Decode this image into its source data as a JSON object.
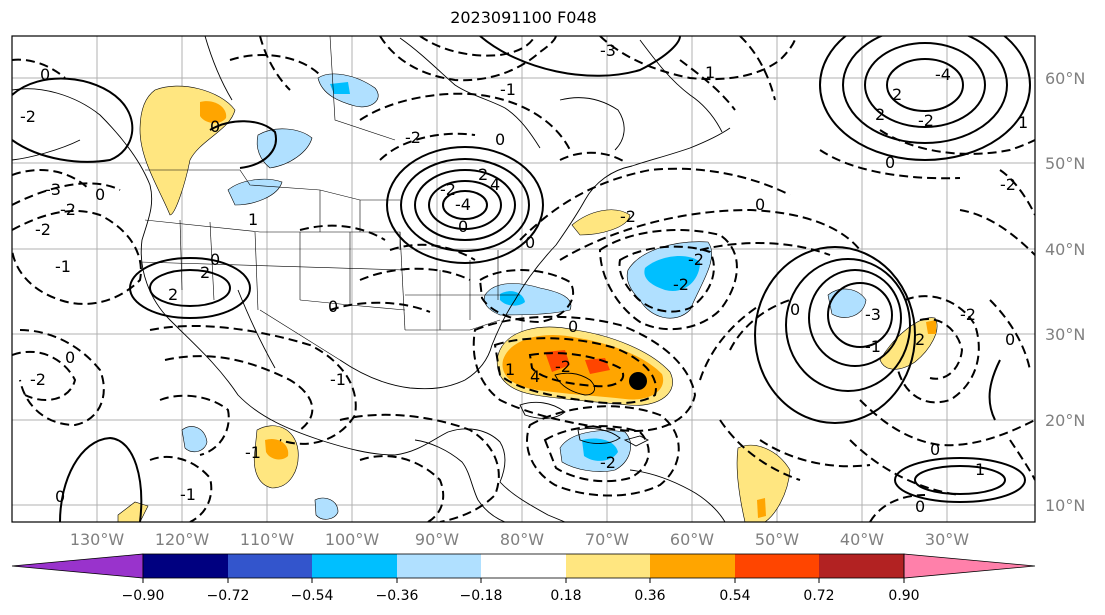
{
  "title": "2023091100 F048",
  "latitude_labels": [
    "60°N",
    "50°N",
    "40°N",
    "30°N",
    "20°N",
    "10°N"
  ],
  "longitude_labels": [
    "130°W",
    "120°W",
    "110°W",
    "100°W",
    "90°W",
    "80°W",
    "70°W",
    "60°W",
    "50°W",
    "40°W",
    "30°W"
  ],
  "colorbar": {
    "ticks": [
      "−0.90",
      "−0.72",
      "−0.54",
      "−0.36",
      "−0.18",
      "0.18",
      "0.36",
      "0.54",
      "0.72",
      "0.90"
    ],
    "colors": [
      "#9933cc",
      "#000080",
      "#3355cc",
      "#00bfff",
      "#b0e0ff",
      "#ffffff",
      "#ffe680",
      "#ffa500",
      "#ff4500",
      "#b22222",
      "#ff80aa"
    ]
  },
  "contour_labels": [
    "0",
    "-2",
    "0",
    "-2",
    "-1",
    "-3",
    "-2",
    "0",
    "2",
    "0",
    "2",
    "1",
    "0",
    "-2",
    "-1",
    "0",
    "-1",
    "-1",
    "0",
    "-4",
    "2",
    "-2",
    "4",
    "0",
    "0",
    "-2",
    "0",
    "-1",
    "0",
    "-2",
    "1",
    "4",
    "-3",
    "-2",
    "-2",
    "0",
    "-2",
    "0",
    "1",
    "-2",
    "-2",
    "0",
    "2",
    "-4",
    "-2",
    "2",
    "0",
    "1",
    "0",
    "-2",
    "0",
    "-1",
    "-3",
    "1",
    "2"
  ],
  "storm_marker": "tropical-cyclone-center"
}
